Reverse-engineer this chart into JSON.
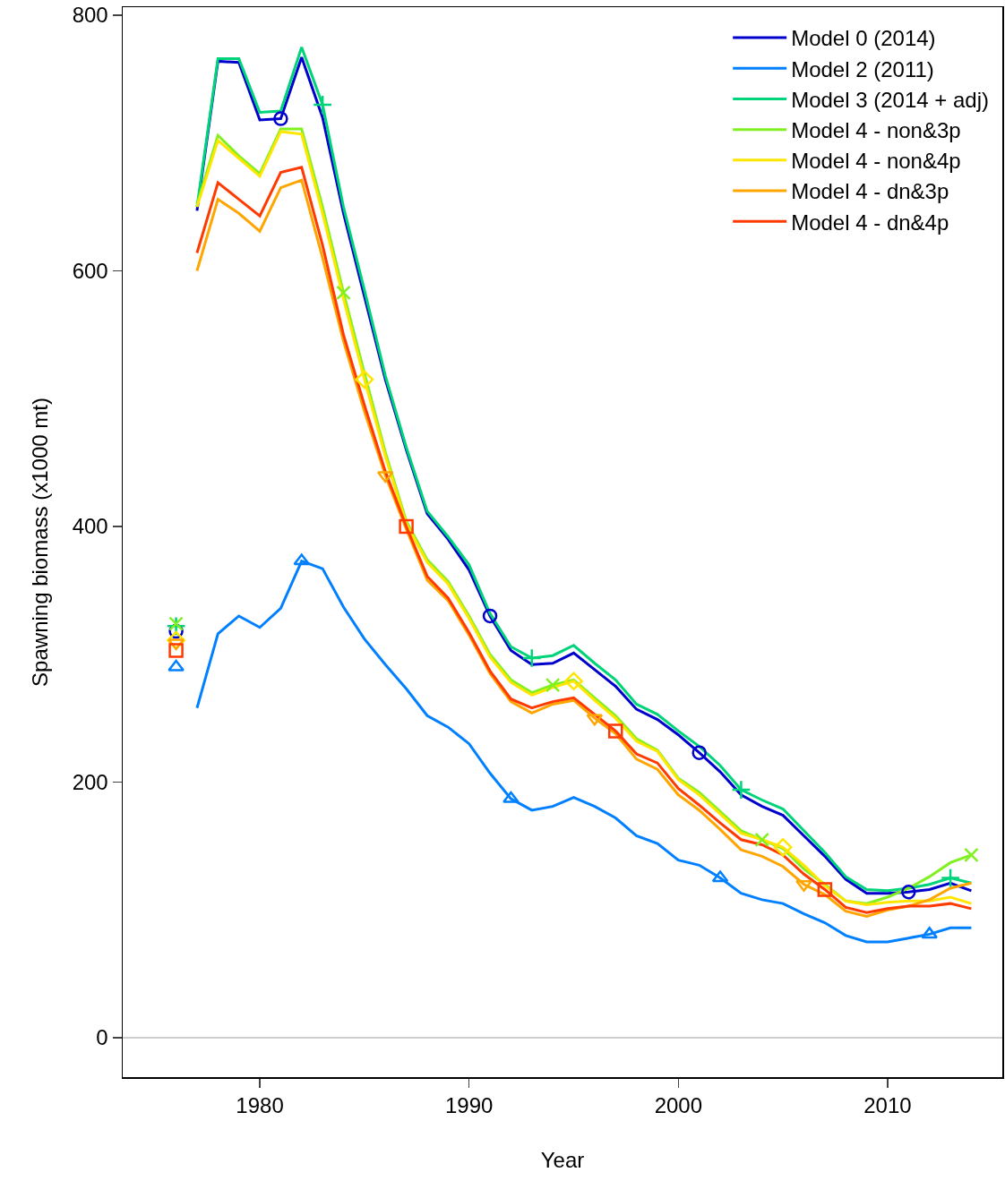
{
  "chart_data": {
    "type": "line",
    "xlabel": "Year",
    "ylabel": "Spawning biomass (x1000 mt)",
    "xlim": [
      1973.45,
      2015.48
    ],
    "xticks": [
      1980,
      1990,
      2000,
      2010
    ],
    "ylim": [
      -30.8,
      806.3
    ],
    "yticks": [
      0,
      200,
      400,
      600,
      800
    ],
    "grid": false,
    "legend": "top right",
    "line_style": "solid",
    "x": [
      1977,
      1978,
      1979,
      1980,
      1981,
      1982,
      1983,
      1984,
      1985,
      1986,
      1987,
      1988,
      1989,
      1990,
      1991,
      1992,
      1993,
      1994,
      1995,
      1996,
      1997,
      1998,
      1999,
      2000,
      2001,
      2002,
      2003,
      2004,
      2005,
      2006,
      2007,
      2008,
      2009,
      2010,
      2011,
      2012,
      2013,
      2014
    ],
    "ref_lines": [
      {
        "axis": "y",
        "value": 0,
        "color": "#bebebe"
      }
    ],
    "series": [
      {
        "name": "Model 0 (2014)",
        "color": "#0000cc",
        "values": [
          647,
          764,
          763,
          718,
          719,
          767,
          720,
          645,
          580,
          515,
          460,
          410,
          390,
          366,
          330,
          303,
          292,
          293,
          301,
          288,
          275,
          257,
          249,
          237,
          223,
          208,
          190,
          181,
          174,
          158,
          142,
          124,
          113,
          113,
          114,
          116,
          121,
          115
        ]
      },
      {
        "name": "Model 2 (2011)",
        "color": "#0080ff",
        "values": [
          258,
          316,
          330,
          321,
          336,
          373,
          367,
          337,
          312,
          292,
          273,
          252,
          243,
          230,
          207,
          187,
          178,
          181,
          188,
          181,
          172,
          158,
          152,
          139,
          135,
          125,
          113,
          108,
          105,
          97,
          90,
          80,
          75,
          75,
          78,
          81,
          86,
          86
        ]
      },
      {
        "name": "Model 3 (2014 + adj)",
        "color": "#00d47a",
        "values": [
          650,
          766,
          766,
          724,
          725,
          775,
          730,
          650,
          585,
          518,
          462,
          412,
          392,
          370,
          332,
          306,
          297,
          299,
          307,
          293,
          280,
          261,
          253,
          240,
          228,
          213,
          194,
          186,
          179,
          162,
          145,
          126,
          116,
          115,
          117,
          120,
          125,
          121
        ]
      },
      {
        "name": "Model 4 - non&3p",
        "color": "#80f020",
        "values": [
          652,
          706,
          690,
          676,
          711,
          711,
          650,
          583,
          520,
          458,
          404,
          374,
          357,
          330,
          300,
          280,
          270,
          276,
          280,
          266,
          252,
          234,
          225,
          203,
          192,
          177,
          162,
          155,
          148,
          132,
          120,
          107,
          105,
          110,
          117,
          126,
          137,
          143
        ]
      },
      {
        "name": "Model 4 - non&4p",
        "color": "#ffe600",
        "values": [
          650,
          702,
          688,
          674,
          709,
          707,
          645,
          578,
          515,
          455,
          402,
          372,
          355,
          328,
          298,
          278,
          268,
          274,
          279,
          264,
          250,
          232,
          224,
          202,
          190,
          175,
          160,
          155,
          149,
          135,
          119,
          107,
          104,
          106,
          107,
          107,
          110,
          105
        ]
      },
      {
        "name": "Model 4 - dn&3p",
        "color": "#ffa500",
        "values": [
          600,
          656,
          645,
          631,
          665,
          671,
          610,
          545,
          490,
          440,
          398,
          358,
          342,
          315,
          285,
          263,
          254,
          261,
          264,
          250,
          238,
          218,
          210,
          190,
          178,
          163,
          147,
          142,
          134,
          120,
          112,
          99,
          95,
          100,
          103,
          108,
          117,
          121
        ]
      },
      {
        "name": "Model 4 - dn&4p",
        "color": "#ff3a00",
        "values": [
          614,
          669,
          656,
          643,
          677,
          681,
          620,
          550,
          495,
          443,
          400,
          361,
          344,
          317,
          287,
          265,
          258,
          263,
          266,
          253,
          240,
          222,
          215,
          195,
          182,
          168,
          155,
          151,
          143,
          128,
          116,
          102,
          98,
          101,
          103,
          103,
          105,
          101
        ]
      },
      {
        "type": "scatter",
        "color": "#0000cc",
        "marker": "circle",
        "x": [
          1976,
          1981,
          1991,
          2001,
          2011
        ],
        "values": [
          318,
          719,
          330,
          223,
          114
        ]
      },
      {
        "type": "scatter",
        "color": "#0080ff",
        "marker": "triangle",
        "x": [
          1976,
          1982,
          1992,
          2002,
          2012
        ],
        "values": [
          290,
          373,
          187,
          125,
          81
        ]
      },
      {
        "type": "scatter",
        "color": "#00d47a",
        "marker": "cross",
        "x": [
          1976,
          1983,
          1993,
          2003,
          2013
        ],
        "values": [
          322,
          730,
          297,
          194,
          125
        ]
      },
      {
        "type": "scatter",
        "color": "#80f020",
        "marker": "x",
        "x": [
          1976,
          1984,
          1994,
          2004,
          2014
        ],
        "values": [
          324,
          583,
          276,
          155,
          143
        ]
      },
      {
        "type": "scatter",
        "color": "#ffe600",
        "marker": "diamond",
        "x": [
          1976,
          1985,
          1995,
          2005
        ],
        "values": [
          311,
          515,
          279,
          149
        ]
      },
      {
        "type": "scatter",
        "color": "#ffa500",
        "marker": "triangle-down",
        "x": [
          1976,
          1986,
          1996,
          2006
        ],
        "values": [
          309,
          440,
          250,
          120
        ]
      },
      {
        "type": "scatter",
        "color": "#ff3a00",
        "marker": "square",
        "x": [
          1976,
          1987,
          1997,
          2007
        ],
        "values": [
          303,
          400,
          240,
          116
        ]
      }
    ]
  }
}
